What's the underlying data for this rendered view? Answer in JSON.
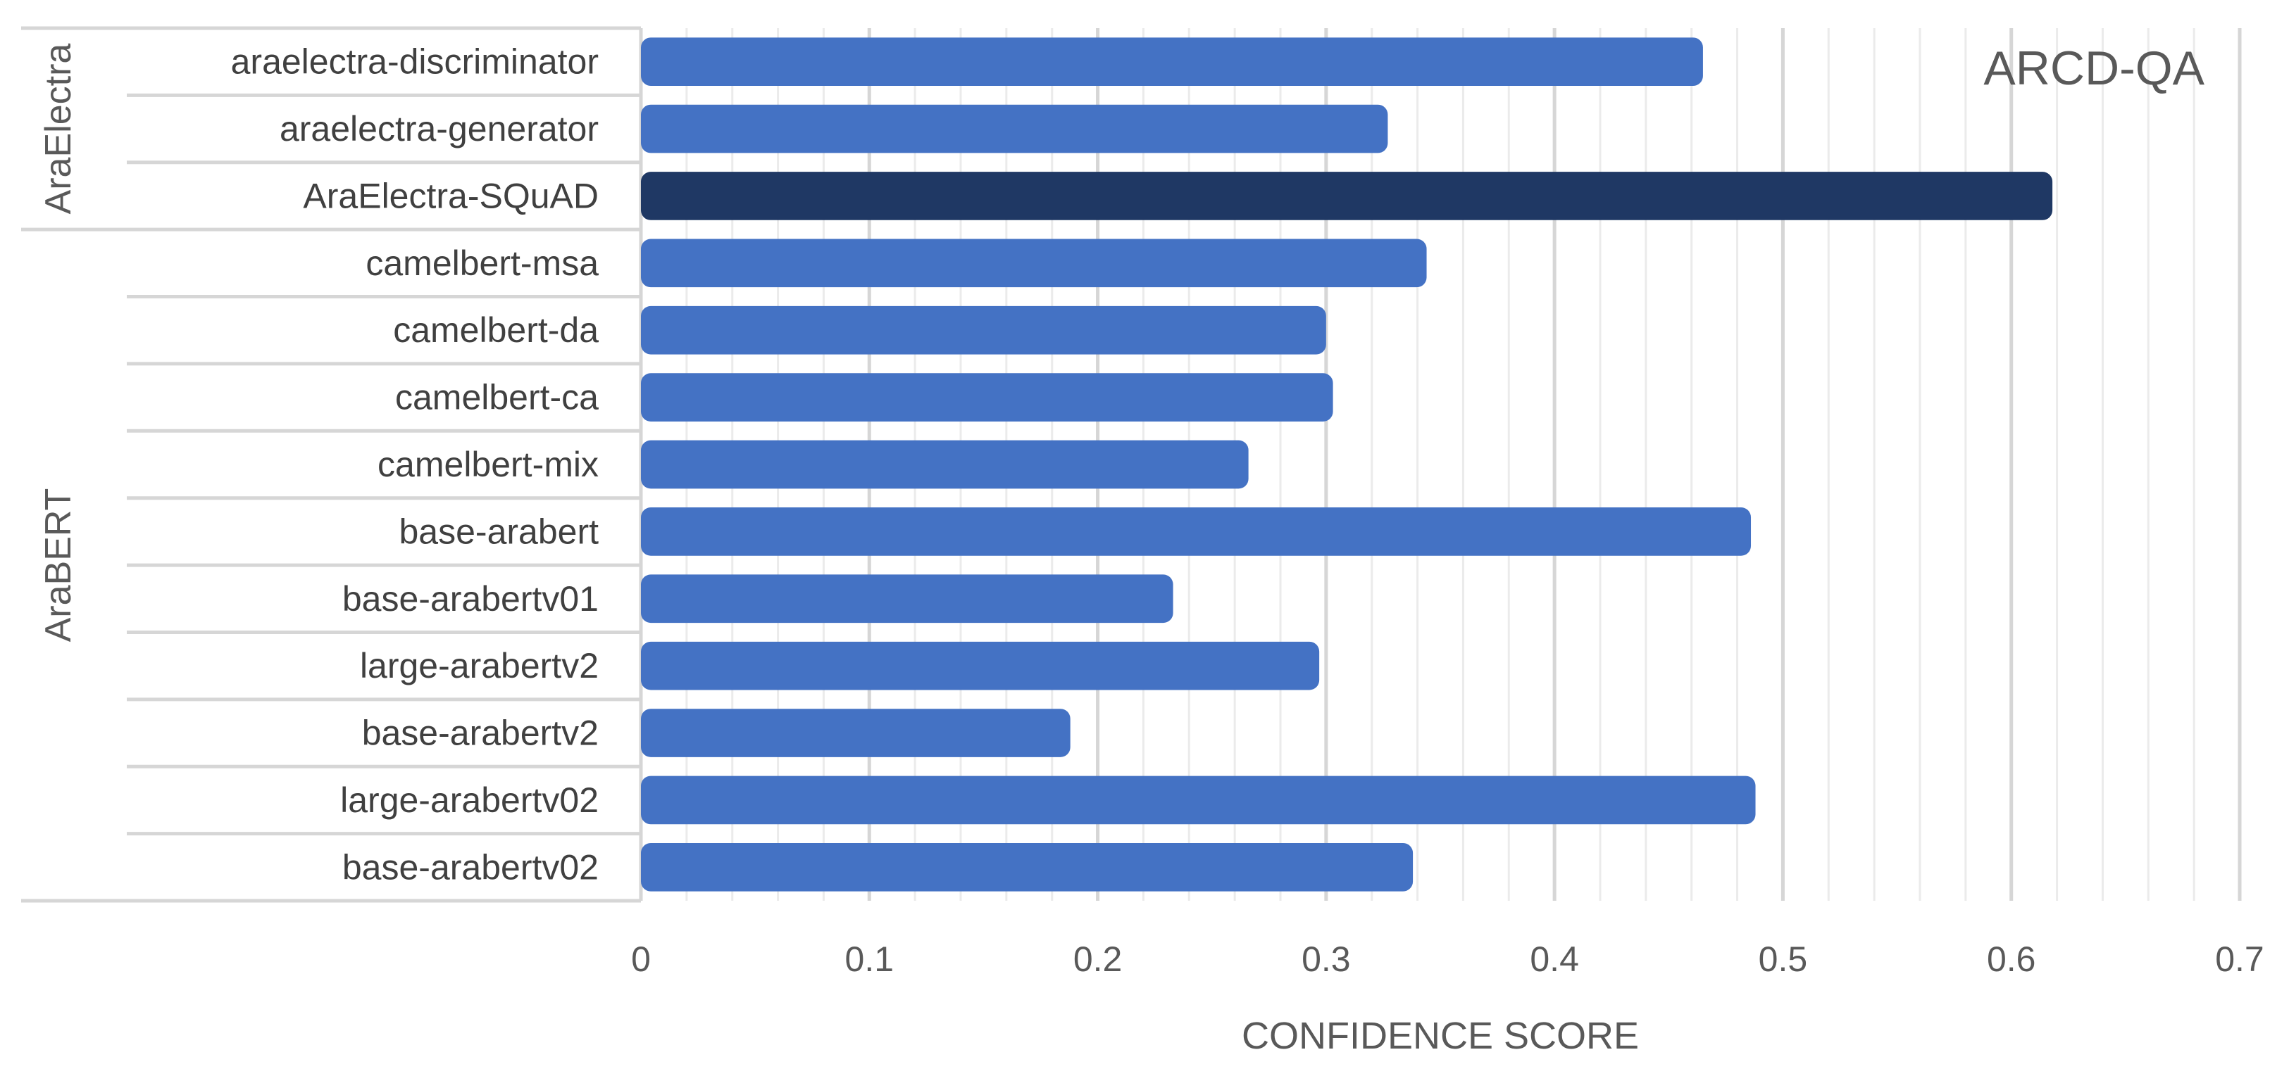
{
  "chart_data": {
    "type": "bar",
    "orientation": "horizontal",
    "title": "ARCD-QA",
    "xlabel": "CONFIDENCE SCORE",
    "xlim": [
      0,
      0.7
    ],
    "xticks": [
      "0",
      "0.1",
      "0.2",
      "0.3",
      "0.4",
      "0.5",
      "0.6",
      "0.7"
    ],
    "grid": true,
    "groups": [
      {
        "name": "AraElectra",
        "start": 0,
        "end": 2
      },
      {
        "name": "AraBERT",
        "start": 3,
        "end": 12
      }
    ],
    "categories": [
      "araelectra-discriminator",
      "araelectra-generator",
      "AraElectra-SQuAD",
      "camelbert-msa",
      "camelbert-da",
      "camelbert-ca",
      "camelbert-mix",
      "base-arabert",
      "base-arabertv01",
      "large-arabertv2",
      "base-arabertv2",
      "large-arabertv02",
      "base-arabertv02"
    ],
    "values": [
      0.465,
      0.327,
      0.618,
      0.344,
      0.3,
      0.303,
      0.266,
      0.486,
      0.233,
      0.297,
      0.188,
      0.488,
      0.338
    ],
    "bar_color": "#4472C4",
    "highlight_index": 2,
    "highlight_color": "#1F3864"
  }
}
